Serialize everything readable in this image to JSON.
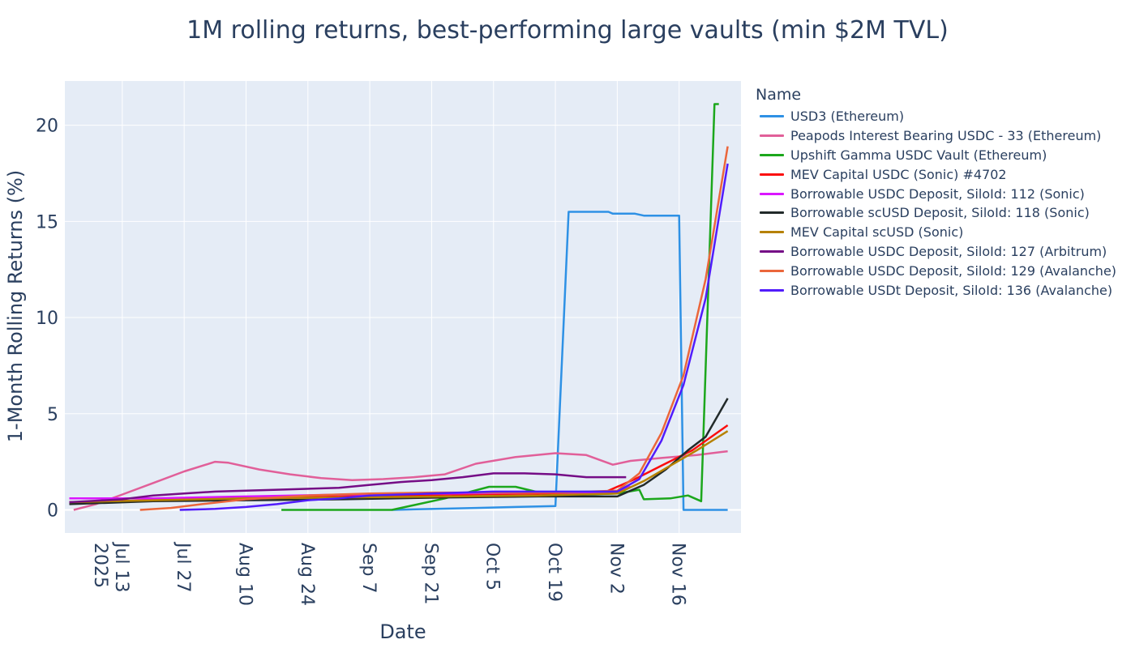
{
  "chart_data": {
    "type": "line",
    "title": "1M rolling returns, best-performing large vaults (min $2M TVL)",
    "xlabel": "Date",
    "ylabel": "1-Month Rolling Returns (%)",
    "legend_title": "Name",
    "legend_position": "right",
    "grid": true,
    "x_range": [
      "2025-06-30",
      "2025-11-30"
    ],
    "ylim": [
      -1.2,
      22.3
    ],
    "x_ticks": [
      {
        "date": "2025-07-13",
        "label": "Jul 13",
        "sub": "2025"
      },
      {
        "date": "2025-07-27",
        "label": "Jul 27",
        "sub": ""
      },
      {
        "date": "2025-08-10",
        "label": "Aug 10",
        "sub": ""
      },
      {
        "date": "2025-08-24",
        "label": "Aug 24",
        "sub": ""
      },
      {
        "date": "2025-09-07",
        "label": "Sep 7",
        "sub": ""
      },
      {
        "date": "2025-09-21",
        "label": "Sep 21",
        "sub": ""
      },
      {
        "date": "2025-10-05",
        "label": "Oct 5",
        "sub": ""
      },
      {
        "date": "2025-10-19",
        "label": "Oct 19",
        "sub": ""
      },
      {
        "date": "2025-11-02",
        "label": "Nov 2",
        "sub": ""
      },
      {
        "date": "2025-11-16",
        "label": "Nov 16",
        "sub": ""
      }
    ],
    "y_ticks": [
      0,
      5,
      10,
      15,
      20
    ],
    "series": [
      {
        "name": "USD3 (Ethereum)",
        "color": "#2e91e5",
        "points": [
          [
            "2025-09-12",
            0
          ],
          [
            "2025-10-01",
            0.1
          ],
          [
            "2025-10-10",
            0.15
          ],
          [
            "2025-10-19",
            0.2
          ],
          [
            "2025-10-22",
            15.5
          ],
          [
            "2025-10-31",
            15.5
          ],
          [
            "2025-11-01",
            15.4
          ],
          [
            "2025-11-06",
            15.4
          ],
          [
            "2025-11-08",
            15.3
          ],
          [
            "2025-11-16",
            15.3
          ],
          [
            "2025-11-17",
            0
          ],
          [
            "2025-11-27",
            0
          ]
        ]
      },
      {
        "name": "Peapods Interest Bearing USDC - 33 (Ethereum)",
        "color": "#e15f99",
        "points": [
          [
            "2025-07-02",
            0
          ],
          [
            "2025-07-07",
            0.3
          ],
          [
            "2025-07-13",
            0.8
          ],
          [
            "2025-07-20",
            1.4
          ],
          [
            "2025-07-27",
            2.0
          ],
          [
            "2025-08-03",
            2.5
          ],
          [
            "2025-08-06",
            2.45
          ],
          [
            "2025-08-13",
            2.1
          ],
          [
            "2025-08-20",
            1.85
          ],
          [
            "2025-08-27",
            1.65
          ],
          [
            "2025-09-03",
            1.55
          ],
          [
            "2025-09-10",
            1.6
          ],
          [
            "2025-09-17",
            1.7
          ],
          [
            "2025-09-24",
            1.85
          ],
          [
            "2025-10-01",
            2.4
          ],
          [
            "2025-10-10",
            2.75
          ],
          [
            "2025-10-19",
            2.95
          ],
          [
            "2025-10-26",
            2.85
          ],
          [
            "2025-11-01",
            2.35
          ],
          [
            "2025-11-05",
            2.55
          ],
          [
            "2025-11-12",
            2.7
          ],
          [
            "2025-11-20",
            2.85
          ],
          [
            "2025-11-27",
            3.05
          ]
        ]
      },
      {
        "name": "Upshift Gamma USDC Vault (Ethereum)",
        "color": "#1ca71c",
        "points": [
          [
            "2025-08-18",
            0
          ],
          [
            "2025-09-12",
            0
          ],
          [
            "2025-09-24",
            0.6
          ],
          [
            "2025-10-04",
            1.2
          ],
          [
            "2025-10-10",
            1.2
          ],
          [
            "2025-10-19",
            0.7
          ],
          [
            "2025-10-26",
            0.8
          ],
          [
            "2025-11-02",
            0.85
          ],
          [
            "2025-11-07",
            1.05
          ],
          [
            "2025-11-08",
            0.55
          ],
          [
            "2025-11-14",
            0.6
          ],
          [
            "2025-11-18",
            0.75
          ],
          [
            "2025-11-21",
            0.45
          ],
          [
            "2025-11-24",
            21.1
          ],
          [
            "2025-11-25",
            21.1
          ]
        ]
      },
      {
        "name": "MEV Capital USDC (Sonic) #4702",
        "color": "#fb0d0d",
        "points": [
          [
            "2025-07-01",
            0.4
          ],
          [
            "2025-07-20",
            0.5
          ],
          [
            "2025-08-10",
            0.6
          ],
          [
            "2025-09-01",
            0.7
          ],
          [
            "2025-09-25",
            0.8
          ],
          [
            "2025-10-15",
            0.85
          ],
          [
            "2025-10-30",
            0.9
          ],
          [
            "2025-11-06",
            1.6
          ],
          [
            "2025-11-12",
            2.3
          ],
          [
            "2025-11-19",
            3.1
          ],
          [
            "2025-11-27",
            4.4
          ]
        ]
      },
      {
        "name": "Borrowable USDC Deposit, SiloId: 112 (Sonic)",
        "color": "#da16ff",
        "points": [
          [
            "2025-07-01",
            0.6
          ],
          [
            "2025-07-20",
            0.6
          ],
          [
            "2025-08-10",
            0.7
          ],
          [
            "2025-09-01",
            0.8
          ],
          [
            "2025-09-25",
            0.85
          ],
          [
            "2025-10-15",
            0.9
          ],
          [
            "2025-11-01",
            0.9
          ],
          [
            "2025-11-05",
            1.2
          ]
        ]
      },
      {
        "name": "Borrowable scUSD Deposit, SiloId: 118 (Sonic)",
        "color": "#222a2a",
        "points": [
          [
            "2025-07-01",
            0.3
          ],
          [
            "2025-07-20",
            0.45
          ],
          [
            "2025-08-10",
            0.5
          ],
          [
            "2025-09-01",
            0.55
          ],
          [
            "2025-09-25",
            0.65
          ],
          [
            "2025-10-15",
            0.7
          ],
          [
            "2025-11-02",
            0.7
          ],
          [
            "2025-11-08",
            1.3
          ],
          [
            "2025-11-13",
            2.1
          ],
          [
            "2025-11-18",
            3.1
          ],
          [
            "2025-11-22",
            3.8
          ],
          [
            "2025-11-27",
            5.8
          ]
        ]
      },
      {
        "name": "MEV Capital scUSD (Sonic)",
        "color": "#b68100",
        "points": [
          [
            "2025-07-01",
            0.4
          ],
          [
            "2025-07-20",
            0.5
          ],
          [
            "2025-08-10",
            0.6
          ],
          [
            "2025-09-01",
            0.65
          ],
          [
            "2025-09-25",
            0.7
          ],
          [
            "2025-10-15",
            0.75
          ],
          [
            "2025-11-02",
            0.85
          ],
          [
            "2025-11-08",
            1.5
          ],
          [
            "2025-11-14",
            2.3
          ],
          [
            "2025-11-20",
            3.1
          ],
          [
            "2025-11-27",
            4.1
          ]
        ]
      },
      {
        "name": "Borrowable USDC Deposit, SiloId: 127 (Arbitrum)",
        "color": "#750d86",
        "points": [
          [
            "2025-07-01",
            0.4
          ],
          [
            "2025-07-13",
            0.55
          ],
          [
            "2025-07-20",
            0.75
          ],
          [
            "2025-07-27",
            0.85
          ],
          [
            "2025-08-03",
            0.95
          ],
          [
            "2025-08-17",
            1.05
          ],
          [
            "2025-08-31",
            1.15
          ],
          [
            "2025-09-07",
            1.3
          ],
          [
            "2025-09-14",
            1.45
          ],
          [
            "2025-09-21",
            1.55
          ],
          [
            "2025-09-28",
            1.7
          ],
          [
            "2025-10-05",
            1.9
          ],
          [
            "2025-10-12",
            1.9
          ],
          [
            "2025-10-19",
            1.85
          ],
          [
            "2025-10-26",
            1.7
          ],
          [
            "2025-11-04",
            1.7
          ]
        ]
      },
      {
        "name": "Borrowable USDC Deposit, SiloId: 129 (Avalanche)",
        "color": "#eb663b",
        "points": [
          [
            "2025-07-17",
            0
          ],
          [
            "2025-07-24",
            0.1
          ],
          [
            "2025-07-31",
            0.3
          ],
          [
            "2025-08-10",
            0.55
          ],
          [
            "2025-08-24",
            0.75
          ],
          [
            "2025-09-07",
            0.85
          ],
          [
            "2025-09-21",
            0.9
          ],
          [
            "2025-10-05",
            0.9
          ],
          [
            "2025-10-19",
            0.9
          ],
          [
            "2025-11-02",
            1.0
          ],
          [
            "2025-11-07",
            1.9
          ],
          [
            "2025-11-12",
            4.0
          ],
          [
            "2025-11-17",
            7.0
          ],
          [
            "2025-11-22",
            12.0
          ],
          [
            "2025-11-27",
            18.9
          ]
        ]
      },
      {
        "name": "Borrowable USDt Deposit, SiloId: 136 (Avalanche)",
        "color": "#511cfb",
        "points": [
          [
            "2025-07-26",
            0
          ],
          [
            "2025-08-03",
            0.05
          ],
          [
            "2025-08-10",
            0.15
          ],
          [
            "2025-08-17",
            0.3
          ],
          [
            "2025-08-24",
            0.5
          ],
          [
            "2025-08-31",
            0.6
          ],
          [
            "2025-09-07",
            0.75
          ],
          [
            "2025-09-21",
            0.85
          ],
          [
            "2025-10-05",
            0.95
          ],
          [
            "2025-10-19",
            0.95
          ],
          [
            "2025-11-02",
            0.95
          ],
          [
            "2025-11-07",
            1.6
          ],
          [
            "2025-11-12",
            3.6
          ],
          [
            "2025-11-17",
            6.5
          ],
          [
            "2025-11-22",
            11.0
          ],
          [
            "2025-11-27",
            18.0
          ]
        ]
      }
    ]
  }
}
